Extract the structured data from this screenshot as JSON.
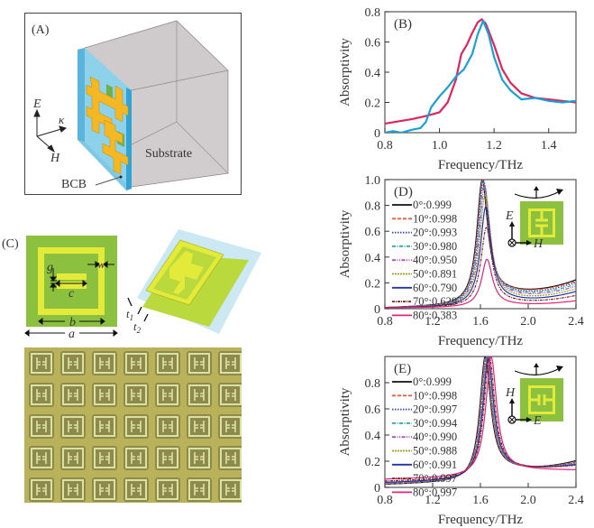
{
  "panel_a": {
    "label": "(A)",
    "substrate_label": "Substrate",
    "bcb_label": "BCB",
    "axis_e": "E",
    "axis_k": "κ",
    "axis_h": "H"
  },
  "panel_c": {
    "label": "(C)",
    "dims": {
      "g": "g",
      "w": "w",
      "c": "c",
      "b": "b",
      "a": "a",
      "t1": "t",
      "t1_sub": "1",
      "t2": "t",
      "t2_sub": "2"
    }
  },
  "chart_data": [
    {
      "type": "line",
      "panel": "(B)",
      "title": "",
      "xlabel": "Frequency/THz",
      "ylabel": "Absorptivity",
      "xlim": [
        0.8,
        1.5
      ],
      "ylim": [
        0,
        0.8
      ],
      "xticks": [
        "0.8",
        "1.0",
        "1.2",
        "1.4"
      ],
      "xtick_values": [
        0.8,
        1.0,
        1.2,
        1.4
      ],
      "yticks": [
        "0",
        "0.2",
        "0.4",
        "0.6",
        "0.8"
      ],
      "ytick_values": [
        0,
        0.2,
        0.4,
        0.6,
        0.8
      ],
      "grid": false,
      "series": [
        {
          "name": "red",
          "color": "#e0245e",
          "x": [
            0.8,
            0.85,
            0.9,
            0.95,
            1.0,
            1.03,
            1.06,
            1.08,
            1.1,
            1.12,
            1.14,
            1.155,
            1.17,
            1.2,
            1.23,
            1.26,
            1.3,
            1.35,
            1.4,
            1.45,
            1.5
          ],
          "y": [
            0.06,
            0.075,
            0.09,
            0.11,
            0.135,
            0.2,
            0.35,
            0.52,
            0.58,
            0.66,
            0.73,
            0.75,
            0.72,
            0.58,
            0.42,
            0.33,
            0.26,
            0.23,
            0.22,
            0.21,
            0.2
          ]
        },
        {
          "name": "blue",
          "color": "#1aa0d8",
          "x": [
            0.8,
            0.83,
            0.86,
            0.9,
            0.93,
            0.95,
            0.97,
            1.0,
            1.03,
            1.06,
            1.09,
            1.12,
            1.14,
            1.16,
            1.18,
            1.2,
            1.23,
            1.26,
            1.3,
            1.35,
            1.4,
            1.45,
            1.5
          ],
          "y": [
            0.0,
            0.01,
            0.0,
            0.02,
            0.03,
            0.07,
            0.17,
            0.24,
            0.3,
            0.37,
            0.42,
            0.52,
            0.65,
            0.74,
            0.65,
            0.5,
            0.35,
            0.28,
            0.22,
            0.23,
            0.21,
            0.2,
            0.21
          ]
        }
      ]
    },
    {
      "type": "line",
      "panel": "(D)",
      "xlabel": "Frequency/THz",
      "ylabel": "Absorptivity",
      "xlim": [
        0.8,
        2.4
      ],
      "ylim": [
        0,
        1.0
      ],
      "xticks": [
        "0.8",
        "1.2",
        "1.6",
        "2.0",
        "2.4"
      ],
      "xtick_values": [
        0.8,
        1.2,
        1.6,
        2.0,
        2.4
      ],
      "yticks": [
        "0",
        "0.2",
        "0.4",
        "0.6",
        "0.8",
        "1.0"
      ],
      "ytick_values": [
        0,
        0.2,
        0.4,
        0.6,
        0.8,
        1.0
      ],
      "grid": false,
      "legend_position": "top-left",
      "inset_axis_up": "E",
      "inset_axis_right": "H",
      "series": [
        {
          "name": "0°:0.999",
          "color": "#111111",
          "dash": "",
          "peak": 0.999,
          "f0": 1.615,
          "tail": 0.22,
          "min": 0.13
        },
        {
          "name": "10°:0.998",
          "color": "#f05a3c",
          "dash": "4,2",
          "peak": 0.998,
          "f0": 1.62,
          "tail": 0.21,
          "min": 0.125
        },
        {
          "name": "20°:0.993",
          "color": "#3344cc",
          "dash": "1.5,1.5",
          "peak": 0.993,
          "f0": 1.625,
          "tail": 0.2,
          "min": 0.115
        },
        {
          "name": "30°:0.980",
          "color": "#2aa5a5",
          "dash": "4,1.5,1,1.5",
          "peak": 0.98,
          "f0": 1.63,
          "tail": 0.185,
          "min": 0.105
        },
        {
          "name": "40°:0.950",
          "color": "#b04ec0",
          "dash": "4,1.5,1,1.5,1,1.5",
          "peak": 0.95,
          "f0": 1.635,
          "tail": 0.17,
          "min": 0.095
        },
        {
          "name": "50°:0.891",
          "color": "#a0a020",
          "dash": "2,1",
          "peak": 0.891,
          "f0": 1.64,
          "tail": 0.15,
          "min": 0.08
        },
        {
          "name": "60°:0.790",
          "color": "#2233aa",
          "dash": "",
          "peak": 0.79,
          "f0": 1.645,
          "tail": 0.13,
          "min": 0.065
        },
        {
          "name": "70°:0.629",
          "color": "#8b1a1a",
          "dash": "3,1,1,1",
          "peak": 0.629,
          "f0": 1.65,
          "tail": 0.1,
          "min": 0.05
        },
        {
          "name": "80°:0.383",
          "color": "#e0247a",
          "dash": "",
          "peak": 0.383,
          "f0": 1.655,
          "tail": 0.06,
          "min": 0.03
        }
      ]
    },
    {
      "type": "line",
      "panel": "(E)",
      "xlabel": "Frequency/THz",
      "ylabel": "Absorptivity",
      "xlim": [
        0.8,
        2.4
      ],
      "ylim": [
        0,
        1.0
      ],
      "xticks": [
        "0.8",
        "1.2",
        "1.6",
        "2.0",
        "2.4"
      ],
      "xtick_values": [
        0.8,
        1.2,
        1.6,
        2.0,
        2.4
      ],
      "yticks": [
        "0",
        "0.2",
        "0.4",
        "0.6",
        "0.8"
      ],
      "ytick_values": [
        0,
        0.2,
        0.4,
        0.6,
        0.8
      ],
      "grid": false,
      "legend_position": "top-left",
      "inset_axis_up": "H",
      "inset_axis_right": "E",
      "series": [
        {
          "name": "0°:0.999",
          "color": "#111111",
          "dash": "",
          "peak": 0.999,
          "f0": 1.64,
          "tail": 0.2,
          "min": 0.14,
          "base": 0.02
        },
        {
          "name": "10°:0.998",
          "color": "#f05a3c",
          "dash": "4,2",
          "peak": 0.998,
          "f0": 1.645,
          "tail": 0.19,
          "min": 0.14,
          "base": 0.022
        },
        {
          "name": "20°:0.997",
          "color": "#3344cc",
          "dash": "1.5,1.5",
          "peak": 0.997,
          "f0": 1.65,
          "tail": 0.185,
          "min": 0.14,
          "base": 0.025
        },
        {
          "name": "30°:0.994",
          "color": "#2aa5a5",
          "dash": "4,1.5,1,1.5",
          "peak": 0.994,
          "f0": 1.652,
          "tail": 0.18,
          "min": 0.14,
          "base": 0.028
        },
        {
          "name": "40°:0.990",
          "color": "#b04ec0",
          "dash": "4,1.5,1,1.5,1,1.5",
          "peak": 0.99,
          "f0": 1.655,
          "tail": 0.175,
          "min": 0.14,
          "base": 0.03
        },
        {
          "name": "50°:0.988",
          "color": "#a0a020",
          "dash": "2,1",
          "peak": 0.988,
          "f0": 1.66,
          "tail": 0.17,
          "min": 0.14,
          "base": 0.033
        },
        {
          "name": "60°:0.991",
          "color": "#2233aa",
          "dash": "",
          "peak": 0.991,
          "f0": 1.665,
          "tail": 0.17,
          "min": 0.14,
          "base": 0.035
        },
        {
          "name": "70°:0.997",
          "color": "#8b1a1a",
          "dash": "3,1,1,1",
          "peak": 0.997,
          "f0": 1.675,
          "tail": 0.165,
          "min": 0.14,
          "base": 0.045
        },
        {
          "name": "80°:0.997",
          "color": "#e0247a",
          "dash": "",
          "peak": 0.997,
          "f0": 1.69,
          "tail": 0.13,
          "min": 0.13,
          "base": 0.06
        }
      ]
    }
  ]
}
